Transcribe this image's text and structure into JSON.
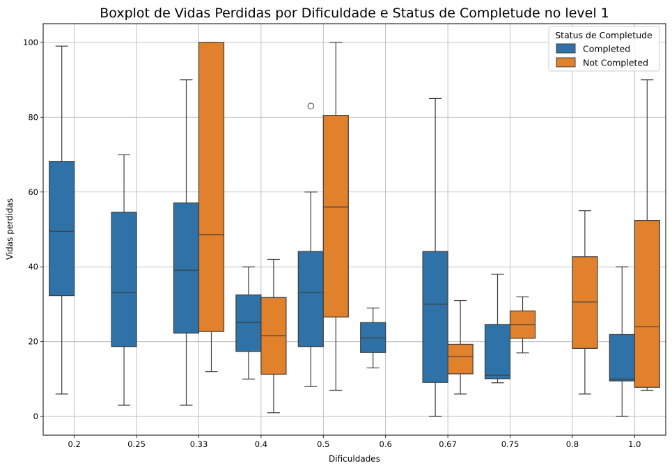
{
  "chart_data": {
    "type": "boxplot",
    "title": "Boxplot de Vidas Perdidas por Dificuldade e Status de Completude no level 1",
    "xlabel": "Dificuldades",
    "ylabel": "Vidas perdidas",
    "ylim": [
      -5,
      105
    ],
    "yticks": [
      0,
      20,
      40,
      60,
      80,
      100
    ],
    "grid": true,
    "categories": [
      "0.2",
      "0.25",
      "0.33",
      "0.4",
      "0.5",
      "0.6",
      "0.67",
      "0.75",
      "0.8",
      "1.0"
    ],
    "legend": {
      "title": "Status de Completude",
      "placement": "top-right"
    },
    "series": [
      {
        "name": "Completed",
        "color": "#2e72a8",
        "boxes": [
          {
            "category": "0.2",
            "whislo": 6,
            "q1": 32.3,
            "med": 49.5,
            "q3": 68.2,
            "whishi": 99,
            "fliers": []
          },
          {
            "category": "0.25",
            "whislo": 3,
            "q1": 18.7,
            "med": 33.1,
            "q3": 54.6,
            "whishi": 70,
            "fliers": []
          },
          {
            "category": "0.33",
            "whislo": 3,
            "q1": 22.3,
            "med": 39.1,
            "q3": 57.1,
            "whishi": 90,
            "fliers": []
          },
          {
            "category": "0.4",
            "whislo": 10,
            "q1": 17.4,
            "med": 25.1,
            "q3": 32.5,
            "whishi": 40,
            "fliers": []
          },
          {
            "category": "0.5",
            "whislo": 8,
            "q1": 18.7,
            "med": 33.1,
            "q3": 44.1,
            "whishi": 60,
            "fliers": [
              83
            ]
          },
          {
            "category": "0.6",
            "whislo": 13,
            "q1": 17.1,
            "med": 21.0,
            "q3": 25.1,
            "whishi": 29,
            "fliers": []
          },
          {
            "category": "0.67",
            "whislo": 0,
            "q1": 9.1,
            "med": 30.0,
            "q3": 44.1,
            "whishi": 85,
            "fliers": []
          },
          {
            "category": "0.75",
            "whislo": 9,
            "q1": 10.1,
            "med": 11.0,
            "q3": 24.6,
            "whishi": 38,
            "fliers": []
          },
          {
            "category": "1.0",
            "whislo": 0,
            "q1": 9.5,
            "med": 10.0,
            "q3": 21.9,
            "whishi": 40,
            "fliers": []
          }
        ]
      },
      {
        "name": "Not Completed",
        "color": "#e1812c",
        "boxes": [
          {
            "category": "0.33",
            "whislo": 12,
            "q1": 22.7,
            "med": 48.6,
            "q3": 100,
            "whishi": 100,
            "fliers": []
          },
          {
            "category": "0.4",
            "whislo": 1,
            "q1": 11.3,
            "med": 21.6,
            "q3": 31.8,
            "whishi": 42,
            "fliers": []
          },
          {
            "category": "0.5",
            "whislo": 7,
            "q1": 26.6,
            "med": 56.0,
            "q3": 80.5,
            "whishi": 100,
            "fliers": []
          },
          {
            "category": "0.67",
            "whislo": 6,
            "q1": 11.4,
            "med": 16.0,
            "q3": 19.3,
            "whishi": 31,
            "fliers": []
          },
          {
            "category": "0.75",
            "whislo": 17,
            "q1": 20.9,
            "med": 24.5,
            "q3": 28.2,
            "whishi": 32,
            "fliers": []
          },
          {
            "category": "0.8",
            "whislo": 6,
            "q1": 18.2,
            "med": 30.6,
            "q3": 42.7,
            "whishi": 55,
            "fliers": []
          },
          {
            "category": "1.0",
            "whislo": 7,
            "q1": 7.8,
            "med": 24.0,
            "q3": 52.4,
            "whishi": 90,
            "fliers": []
          }
        ]
      }
    ]
  }
}
